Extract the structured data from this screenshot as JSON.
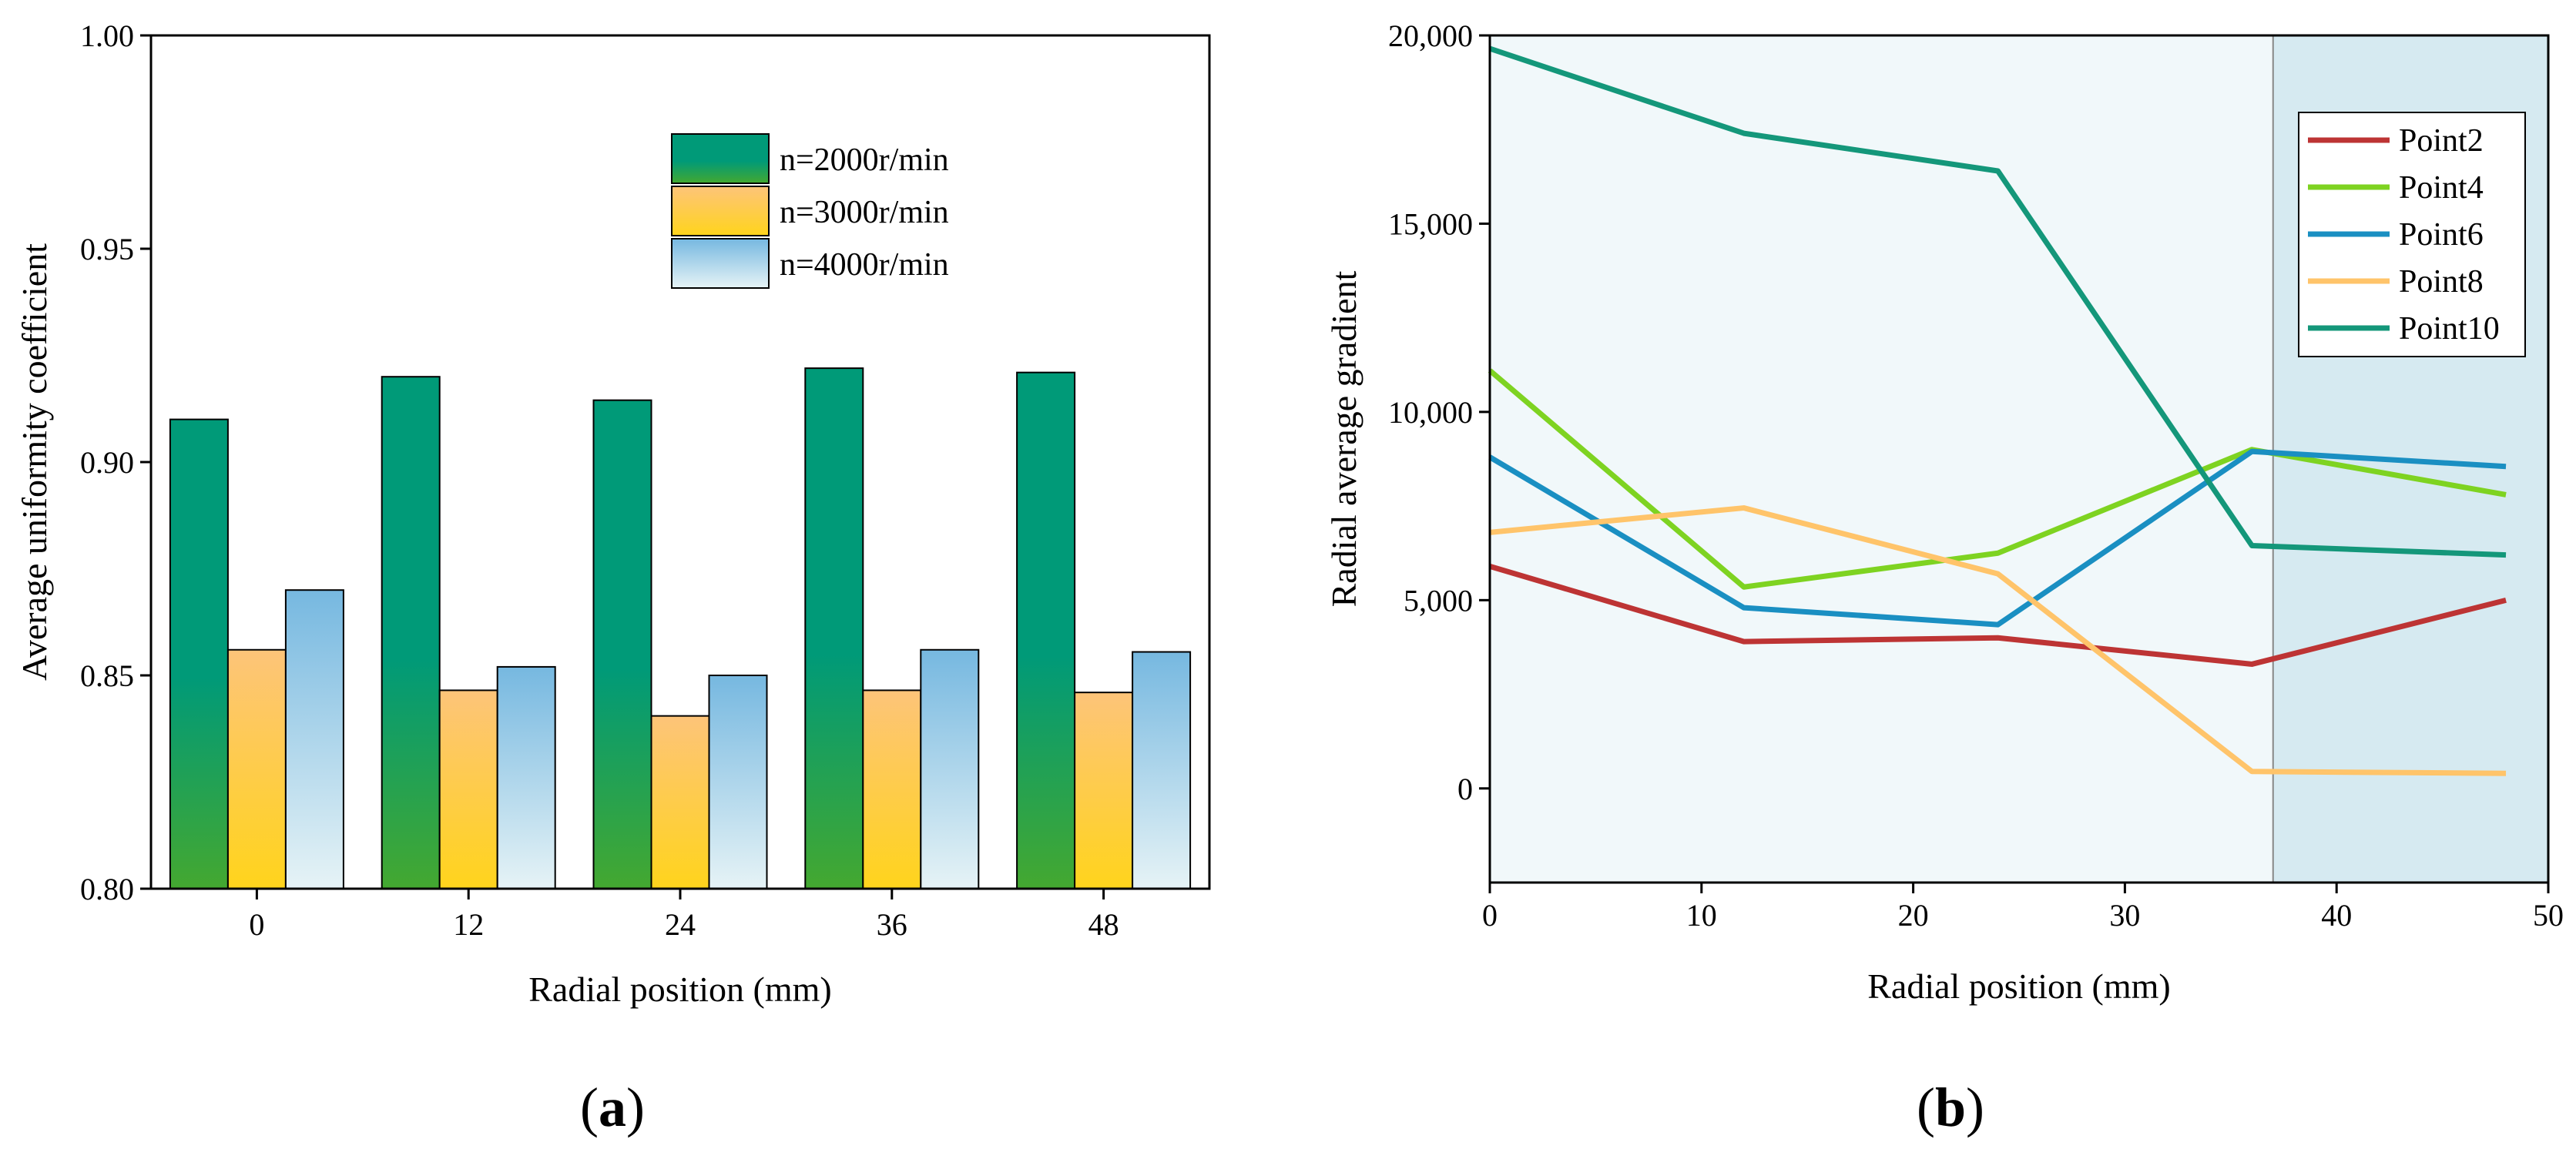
{
  "chart_data": [
    {
      "type": "bar",
      "panel_label": "a",
      "title": "",
      "xlabel": "Radial position (mm)",
      "ylabel": "Average uniformity coefficient",
      "ylim": [
        0.8,
        1.0
      ],
      "yticks": [
        "0.80",
        "0.85",
        "0.90",
        "0.95",
        "1.00"
      ],
      "categories": [
        "0",
        "12",
        "24",
        "36",
        "48"
      ],
      "series": [
        {
          "name": "n=2000r/min",
          "values": [
            0.91,
            0.92,
            0.9145,
            0.922,
            0.921
          ],
          "color_top": "#009a78",
          "color_bottom": "#44a830"
        },
        {
          "name": "n=3000r/min",
          "values": [
            0.856,
            0.8465,
            0.8405,
            0.8465,
            0.846
          ],
          "color_top": "#fdc479",
          "color_bottom": "#ffd41c"
        },
        {
          "name": "n=4000r/min",
          "values": [
            0.87,
            0.852,
            0.85,
            0.856,
            0.8555
          ],
          "color_top": "#76b8e0",
          "color_bottom": "#e6f3f6"
        }
      ],
      "legend_position": "top-right",
      "grid": false
    },
    {
      "type": "line",
      "panel_label": "b",
      "title": "",
      "xlabel": "Radial position (mm)",
      "ylabel": "Radial average gradient",
      "xlim": [
        0,
        50
      ],
      "ylim": [
        -2500,
        20000
      ],
      "xticks": [
        "0",
        "10",
        "20",
        "30",
        "40",
        "50"
      ],
      "yticks": [
        "0",
        "5,000",
        "10,000",
        "15,000",
        "20,000"
      ],
      "x": [
        0,
        12,
        24,
        36,
        48
      ],
      "series": [
        {
          "name": "Point2",
          "values": [
            5900,
            3900,
            4000,
            3300,
            5000
          ],
          "color": "#bd3434"
        },
        {
          "name": "Point4",
          "values": [
            11100,
            5350,
            6250,
            9000,
            7800
          ],
          "color": "#7ed321"
        },
        {
          "name": "Point6",
          "values": [
            8800,
            4800,
            4350,
            8950,
            8550
          ],
          "color": "#1a8fc2"
        },
        {
          "name": "Point8",
          "values": [
            6800,
            7450,
            5700,
            450,
            400
          ],
          "color": "#ffc46a"
        },
        {
          "name": "Point10",
          "values": [
            19650,
            17400,
            16400,
            6450,
            6200
          ],
          "color": "#14977a"
        }
      ],
      "shaded_regions": [
        {
          "x_from": 0,
          "x_to": 37,
          "color": "#f1f8fa"
        },
        {
          "x_from": 37,
          "x_to": 50,
          "color": "#d6eaf1"
        }
      ],
      "legend_position": "top-right",
      "grid": false
    }
  ]
}
